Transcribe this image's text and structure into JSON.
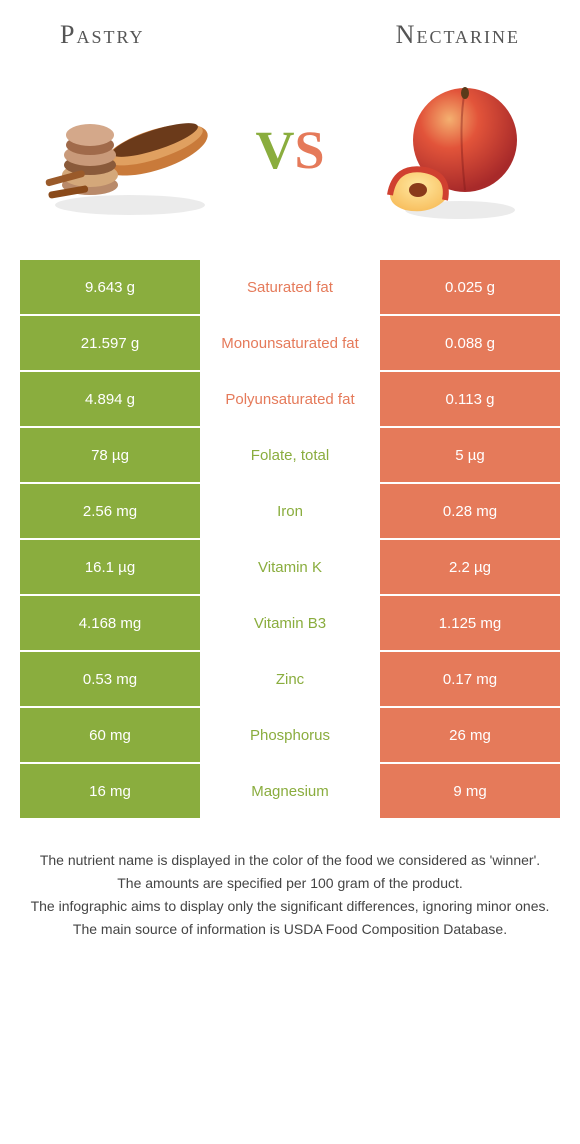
{
  "header": {
    "left_title": "Pastry",
    "right_title": "Nectarine"
  },
  "vs": {
    "v": "V",
    "s": "S"
  },
  "colors": {
    "left_bg": "#8aad3e",
    "right_bg": "#e57a5a",
    "left_text": "#8aad3e",
    "right_text": "#e57a5a"
  },
  "table": {
    "rows": [
      {
        "left": "9.643 g",
        "mid": "Saturated fat",
        "right": "0.025 g",
        "winner": "right"
      },
      {
        "left": "21.597 g",
        "mid": "Monounsaturated fat",
        "right": "0.088 g",
        "winner": "right"
      },
      {
        "left": "4.894 g",
        "mid": "Polyunsaturated fat",
        "right": "0.113 g",
        "winner": "right"
      },
      {
        "left": "78 µg",
        "mid": "Folate, total",
        "right": "5 µg",
        "winner": "left"
      },
      {
        "left": "2.56 mg",
        "mid": "Iron",
        "right": "0.28 mg",
        "winner": "left"
      },
      {
        "left": "16.1 µg",
        "mid": "Vitamin K",
        "right": "2.2 µg",
        "winner": "left"
      },
      {
        "left": "4.168 mg",
        "mid": "Vitamin B3",
        "right": "1.125 mg",
        "winner": "left"
      },
      {
        "left": "0.53 mg",
        "mid": "Zinc",
        "right": "0.17 mg",
        "winner": "left"
      },
      {
        "left": "60 mg",
        "mid": "Phosphorus",
        "right": "26 mg",
        "winner": "left"
      },
      {
        "left": "16 mg",
        "mid": "Magnesium",
        "right": "9 mg",
        "winner": "left"
      }
    ]
  },
  "footnotes": [
    "The nutrient name is displayed in the color of the food we considered as 'winner'.",
    "The amounts are specified per 100 gram of the product.",
    "The infographic aims to display only the significant differences, ignoring minor ones.",
    "The main source of information is USDA Food Composition Database."
  ]
}
